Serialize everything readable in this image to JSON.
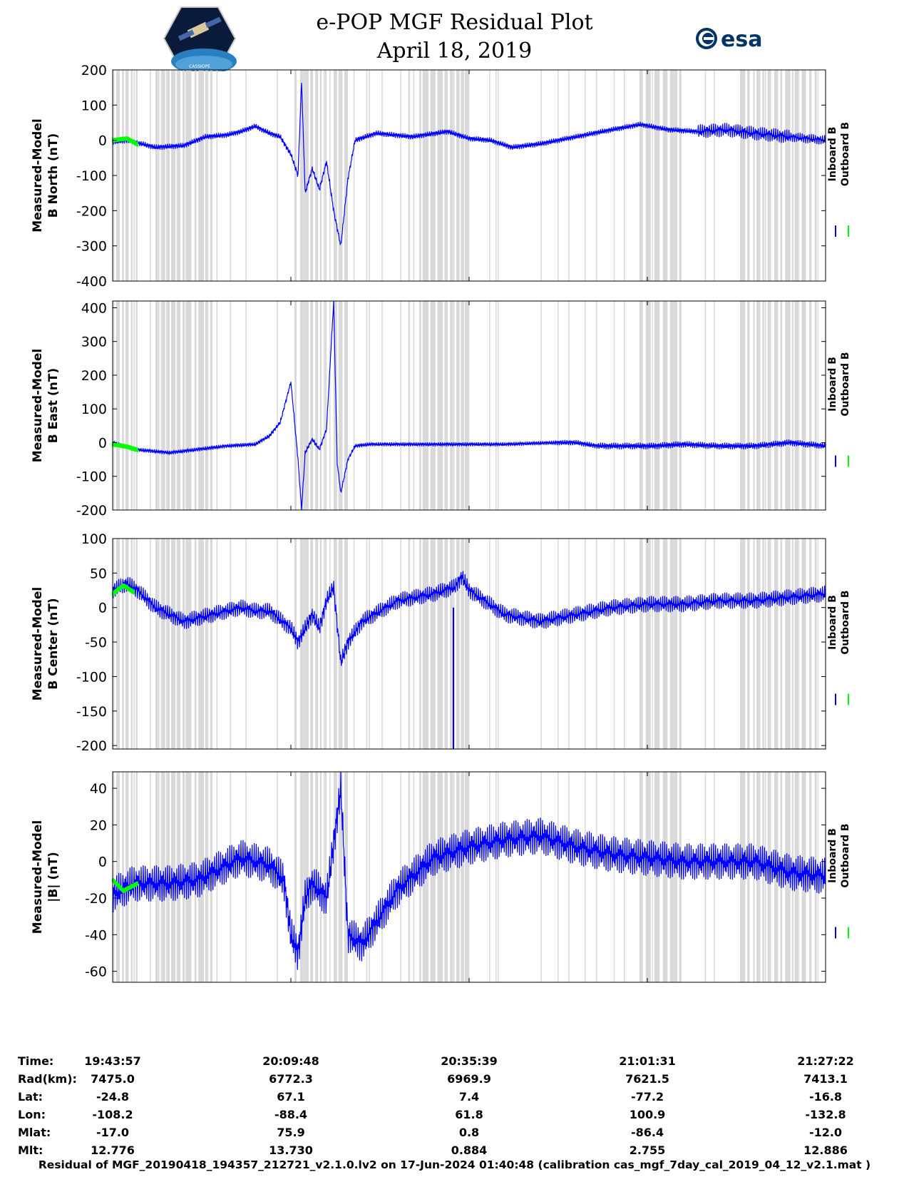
{
  "header": {
    "title": "e-POP MGF Residual Plot",
    "date": "April 18, 2019",
    "logo_left_text": "CASSIOPE",
    "logo_right_text": "esa"
  },
  "colors": {
    "inboard": "#0000ff",
    "outboard": "#00ff00",
    "gap_shade": "#d9d9d9"
  },
  "chart_data": [
    {
      "type": "line",
      "ylabel_line1": "Measured-Model",
      "ylabel_line2": "B North (nT)",
      "ylim": [
        -400,
        200
      ],
      "yticks": [
        200,
        100,
        0,
        -100,
        -200,
        -300,
        -400
      ],
      "legend": [
        "Inboard B",
        "Outboard B"
      ],
      "series": [
        {
          "name": "Inboard B",
          "x": [
            0,
            0.02,
            0.06,
            0.1,
            0.13,
            0.16,
            0.18,
            0.2,
            0.22,
            0.235,
            0.25,
            0.26,
            0.265,
            0.27,
            0.28,
            0.29,
            0.3,
            0.31,
            0.32,
            0.33,
            0.34,
            0.37,
            0.42,
            0.47,
            0.5,
            0.53,
            0.56,
            0.6,
            0.65,
            0.7,
            0.74,
            0.78,
            0.82,
            0.86,
            0.9,
            0.95,
            1.0
          ],
          "y": [
            -5,
            0,
            -20,
            -15,
            10,
            15,
            25,
            40,
            20,
            10,
            -40,
            -100,
            170,
            -150,
            -80,
            -140,
            -60,
            -200,
            -300,
            -110,
            0,
            20,
            10,
            25,
            5,
            0,
            -20,
            -10,
            10,
            30,
            45,
            30,
            25,
            30,
            20,
            10,
            0
          ]
        },
        {
          "name": "Outboard B",
          "x": [
            0,
            0.02,
            0.035
          ],
          "y": [
            0,
            5,
            -12
          ]
        }
      ],
      "band_amplitude": [
        8,
        8,
        8,
        8,
        8,
        8,
        8,
        8,
        8,
        8,
        8,
        8,
        8,
        8,
        8,
        8,
        8,
        8,
        8,
        8,
        8,
        8,
        8,
        8,
        8,
        8,
        8,
        8,
        8,
        8,
        8,
        8,
        20,
        20,
        20,
        14,
        10
      ]
    },
    {
      "type": "line",
      "ylabel_line1": "Measured-Model",
      "ylabel_line2": "B East (nT)",
      "ylim": [
        -200,
        420
      ],
      "yticks": [
        400,
        300,
        200,
        100,
        0,
        -100,
        -200
      ],
      "legend": [
        "Inboard B",
        "Outboard B"
      ],
      "series": [
        {
          "name": "Inboard B",
          "x": [
            0,
            0.03,
            0.08,
            0.12,
            0.16,
            0.2,
            0.22,
            0.235,
            0.25,
            0.26,
            0.265,
            0.27,
            0.28,
            0.29,
            0.3,
            0.31,
            0.315,
            0.32,
            0.33,
            0.34,
            0.36,
            0.42,
            0.48,
            0.55,
            0.62,
            0.65,
            0.68,
            0.72,
            0.76,
            0.8,
            0.85,
            0.9,
            0.95,
            1.0
          ],
          "y": [
            0,
            -20,
            -30,
            -20,
            -10,
            -5,
            20,
            60,
            180,
            -50,
            -200,
            -30,
            10,
            -20,
            40,
            420,
            -60,
            -150,
            -50,
            -10,
            -5,
            -5,
            -5,
            -5,
            0,
            0,
            -10,
            -10,
            -10,
            -5,
            -10,
            -10,
            0,
            -10
          ]
        },
        {
          "name": "Outboard B",
          "x": [
            0,
            0.02,
            0.035
          ],
          "y": [
            -5,
            -12,
            -22
          ]
        }
      ],
      "band_amplitude": [
        6,
        6,
        6,
        6,
        6,
        6,
        6,
        6,
        6,
        6,
        6,
        6,
        6,
        6,
        6,
        6,
        6,
        6,
        6,
        6,
        6,
        6,
        6,
        6,
        8,
        8,
        10,
        10,
        10,
        10,
        10,
        10,
        10,
        10
      ]
    },
    {
      "type": "line",
      "ylabel_line1": "Measured-Model",
      "ylabel_line2": "B Center (nT)",
      "ylim": [
        -205,
        100
      ],
      "yticks": [
        100,
        50,
        0,
        -50,
        -100,
        -150,
        -200
      ],
      "legend": [
        "Inboard B",
        "Outboard B"
      ],
      "series": [
        {
          "name": "Inboard B",
          "x": [
            0,
            0.02,
            0.035,
            0.06,
            0.1,
            0.14,
            0.18,
            0.2,
            0.22,
            0.25,
            0.26,
            0.28,
            0.29,
            0.3,
            0.31,
            0.32,
            0.33,
            0.35,
            0.4,
            0.45,
            0.48,
            0.49,
            0.5,
            0.55,
            0.6,
            0.65,
            0.7,
            0.75,
            0.8,
            0.85,
            0.9,
            0.95,
            1.0
          ],
          "y": [
            25,
            35,
            25,
            0,
            -20,
            -10,
            0,
            -5,
            -5,
            -30,
            -50,
            -10,
            -30,
            10,
            30,
            -80,
            -50,
            -20,
            10,
            20,
            30,
            45,
            25,
            -10,
            -20,
            -10,
            0,
            5,
            5,
            10,
            10,
            15,
            20
          ]
        },
        {
          "name": "Outboard B",
          "x": [
            0,
            0.015,
            0.03
          ],
          "y": [
            20,
            32,
            22
          ]
        }
      ],
      "spike": {
        "x": 0.478,
        "y": -205
      },
      "band_amplitude": [
        12
      ]
    },
    {
      "type": "line",
      "ylabel_line1": "Measured-Model",
      "ylabel_line2": "|B| (nT)",
      "ylim": [
        -66,
        49
      ],
      "yticks": [
        40,
        20,
        0,
        -20,
        -40,
        -60
      ],
      "legend": [
        "Inboard B",
        "Outboard B"
      ],
      "series": [
        {
          "name": "Inboard B",
          "x": [
            0,
            0.03,
            0.08,
            0.12,
            0.15,
            0.18,
            0.22,
            0.24,
            0.25,
            0.26,
            0.27,
            0.28,
            0.3,
            0.31,
            0.32,
            0.33,
            0.35,
            0.4,
            0.45,
            0.5,
            0.55,
            0.6,
            0.65,
            0.7,
            0.75,
            0.8,
            0.85,
            0.9,
            0.95,
            1.0
          ],
          "y": [
            -18,
            -12,
            -12,
            -10,
            -4,
            2,
            -2,
            -10,
            -40,
            -50,
            -20,
            -12,
            -20,
            10,
            40,
            -40,
            -45,
            -15,
            2,
            8,
            12,
            14,
            8,
            4,
            2,
            0,
            0,
            0,
            -6,
            -8
          ]
        },
        {
          "name": "Outboard B",
          "x": [
            0,
            0.015,
            0.035
          ],
          "y": [
            -10,
            -16,
            -12
          ]
        }
      ],
      "band_amplitude": [
        10
      ]
    }
  ],
  "xaxis": {
    "row_labels": [
      "Time:",
      "Rad(km):",
      "Lat:",
      "Lon:",
      "Mlat:",
      "Mlt:"
    ],
    "ticks": [
      {
        "time": "19:43:57",
        "rad": "7475.0",
        "lat": "-24.8",
        "lon": "-108.2",
        "mlat": "-17.0",
        "mlt": "12.776"
      },
      {
        "time": "20:09:48",
        "rad": "6772.3",
        "lat": "67.1",
        "lon": "-88.4",
        "mlat": "75.9",
        "mlt": "13.730"
      },
      {
        "time": "20:35:39",
        "rad": "6969.9",
        "lat": "7.4",
        "lon": "61.8",
        "mlat": "0.8",
        "mlt": "0.884"
      },
      {
        "time": "21:01:31",
        "rad": "7621.5",
        "lat": "-77.2",
        "lon": "100.9",
        "mlat": "-86.4",
        "mlt": "2.755"
      },
      {
        "time": "21:27:22",
        "rad": "7413.1",
        "lat": "-16.8",
        "lon": "-132.8",
        "mlat": "-12.0",
        "mlt": "12.886"
      }
    ]
  },
  "footer": "Residual of MGF_20190418_194357_212721_v2.1.0.lv2 on 17-Jun-2024 01:40:48 (calibration cas_mgf_7day_cal_2019_04_12_v2.1.mat )"
}
